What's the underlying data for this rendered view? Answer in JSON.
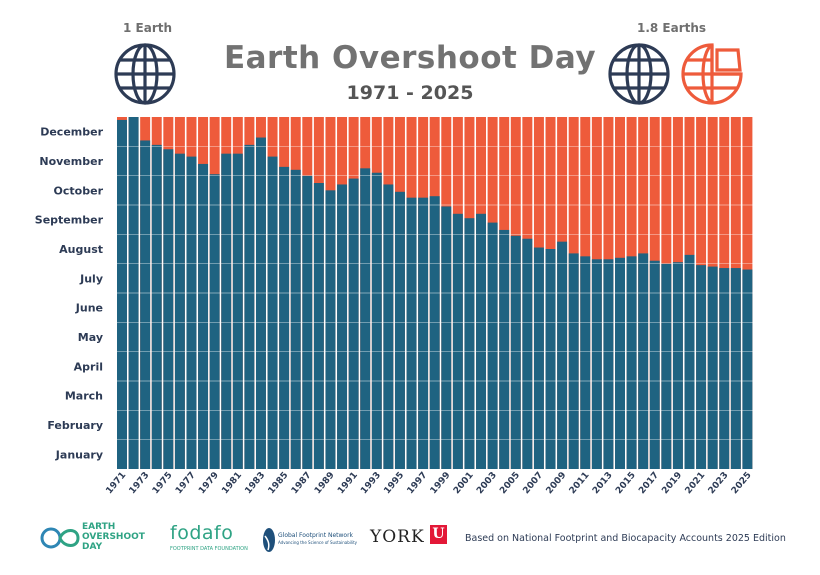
{
  "header": {
    "title": "Earth Overshoot Day",
    "subtitle": "1971 - 2025",
    "left_label": "1 Earth",
    "right_label": "1.8 Earths"
  },
  "colors": {
    "teal": "#1f6381",
    "orange": "#ee5b3b",
    "globe_navy": "#2d3b55",
    "title_gray": "#727272"
  },
  "chart_data": {
    "type": "bar",
    "title": "Earth Overshoot Day",
    "subtitle": "1971 - 2025",
    "y_unit": "month of year",
    "y_ticks": [
      "January",
      "February",
      "March",
      "April",
      "May",
      "June",
      "July",
      "August",
      "September",
      "October",
      "November",
      "December"
    ],
    "ylim": [
      0,
      12
    ],
    "x_tick_labels": [
      "1971",
      "1973",
      "1975",
      "1977",
      "1979",
      "1981",
      "1983",
      "1985",
      "1987",
      "1989",
      "1991",
      "1993",
      "1995",
      "1997",
      "1999",
      "2001",
      "2003",
      "2005",
      "2007",
      "2009",
      "2011",
      "2013",
      "2015",
      "2017",
      "2019",
      "2021",
      "2023",
      "2025"
    ],
    "series": [
      {
        "years": [
          1971,
          1972,
          1973,
          1974,
          1975,
          1976,
          1977,
          1978,
          1979,
          1980,
          1981,
          1982,
          1983,
          1984,
          1985,
          1986,
          1987,
          1988,
          1989,
          1990,
          1991,
          1992,
          1993,
          1994,
          1995,
          1996,
          1997,
          1998,
          1999,
          2000,
          2001,
          2002,
          2003,
          2004,
          2005,
          2006,
          2007,
          2008,
          2009,
          2010,
          2011,
          2012,
          2013,
          2014,
          2015,
          2016,
          2017,
          2018,
          2019,
          2020,
          2021,
          2022,
          2023,
          2024,
          2025
        ],
        "values": [
          11.9,
          12.0,
          11.2,
          11.05,
          10.9,
          10.75,
          10.65,
          10.4,
          10.05,
          10.75,
          10.75,
          11.05,
          11.3,
          10.65,
          10.3,
          10.2,
          10.0,
          9.75,
          9.5,
          9.7,
          9.9,
          10.25,
          10.1,
          9.7,
          9.45,
          9.25,
          9.25,
          9.3,
          8.95,
          8.7,
          8.55,
          8.7,
          8.4,
          8.15,
          7.95,
          7.85,
          7.55,
          7.5,
          7.75,
          7.35,
          7.25,
          7.15,
          7.15,
          7.2,
          7.25,
          7.35,
          7.1,
          7.0,
          7.05,
          7.3,
          6.95,
          6.9,
          6.85,
          6.85,
          6.8
        ]
      }
    ],
    "grid": false
  },
  "footer": {
    "eod_logo": "EARTH\nOVERSHOOT\nDAY",
    "fodafo": "fodafo",
    "fodafo_sub": "FOOTPRINT DATA FOUNDATION",
    "gfn": "Global Footprint Network",
    "gfn_sub": "Advancing the Science of Sustainability",
    "york": "YORK",
    "york_u": "U",
    "based_on": "Based on National Footprint and Biocapacity Accounts 2025 Edition"
  }
}
